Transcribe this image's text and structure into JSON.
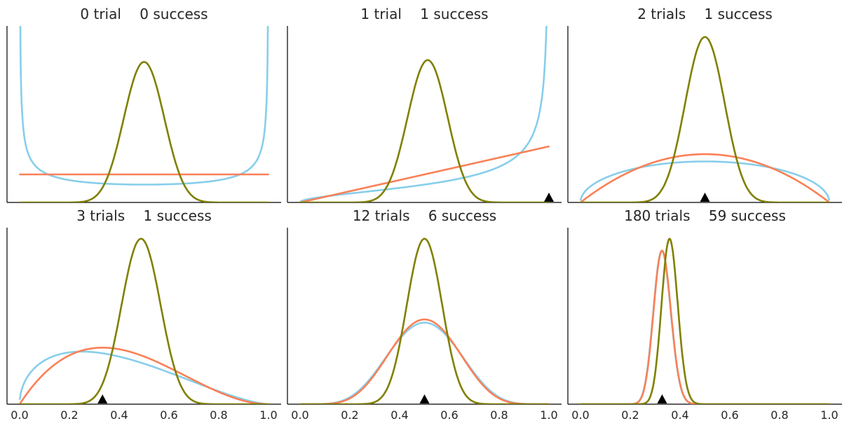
{
  "chart_data": {
    "type": "line",
    "xlim": [
      0,
      1
    ],
    "grid": false,
    "x_ticks": [
      "0.0",
      "0.2",
      "0.4",
      "0.6",
      "0.8",
      "1.0"
    ],
    "y_ticks_shown": false,
    "colors": {
      "beta_0_5": "#87ceeb",
      "uniform": "#fa8057",
      "beta_20": "#808000",
      "marker": "#000000"
    },
    "panels": [
      {
        "trials_label": "0 trial",
        "success_label": "0 success",
        "trials": 0,
        "successes": 0,
        "marker_x": null
      },
      {
        "trials_label": "1 trial",
        "success_label": "1 success",
        "trials": 1,
        "successes": 1,
        "marker_x": 1.0
      },
      {
        "trials_label": "2 trials",
        "success_label": "1 success",
        "trials": 2,
        "successes": 1,
        "marker_x": 0.5
      },
      {
        "trials_label": "3 trials",
        "success_label": "1 success",
        "trials": 3,
        "successes": 1,
        "marker_x": 0.333
      },
      {
        "trials_label": "12 trials",
        "success_label": "6 success",
        "trials": 12,
        "successes": 6,
        "marker_x": 0.5
      },
      {
        "trials_label": "180 trials",
        "success_label": "59 success",
        "trials": 180,
        "successes": 59,
        "marker_x": 0.328
      }
    ],
    "series": [
      {
        "color": "beta_0_5",
        "prior_alpha": 0.5,
        "prior_beta": 0.5
      },
      {
        "color": "uniform",
        "prior_alpha": 1,
        "prior_beta": 1
      },
      {
        "color": "beta_20",
        "prior_alpha": 20,
        "prior_beta": 20
      }
    ]
  }
}
